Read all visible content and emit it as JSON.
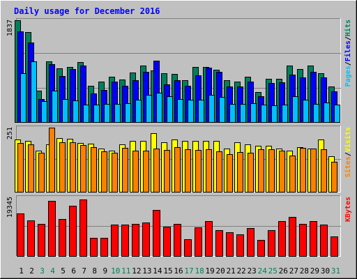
{
  "title": "Daily usage for December 2016",
  "colors": {
    "background": "#c0c0c0",
    "title": "#0000ff",
    "hits": "#00805c",
    "files": "#0000ff",
    "pages": "#00c0ff",
    "visits": "#ffff00",
    "sites": "#ff8000",
    "kbytes": "#ff0000",
    "weekend_label": "#00805c",
    "weekday_label": "#000000"
  },
  "chart_data": [
    {
      "type": "bar",
      "panel": "top",
      "ymax": 1837,
      "ymax_label": "1837",
      "legend": [
        {
          "text": "Pages",
          "color": "#00c0ff"
        },
        {
          "text": "/",
          "color": "#000000"
        },
        {
          "text": "Files",
          "color": "#0000ff"
        },
        {
          "text": "/",
          "color": "#000000"
        },
        {
          "text": "Hits",
          "color": "#00805c"
        }
      ],
      "categories": [
        "1",
        "2",
        "3",
        "4",
        "5",
        "6",
        "7",
        "8",
        "9",
        "10",
        "11",
        "12",
        "13",
        "14",
        "15",
        "16",
        "17",
        "18",
        "19",
        "20",
        "21",
        "22",
        "23",
        "24",
        "25",
        "26",
        "27",
        "28",
        "29",
        "30",
        "31"
      ],
      "series": [
        {
          "name": "Hits",
          "color": "#00805c",
          "values": [
            1837,
            1620,
            560,
            1100,
            970,
            1000,
            1080,
            660,
            730,
            820,
            770,
            890,
            1020,
            930,
            875,
            870,
            750,
            1000,
            1000,
            940,
            750,
            730,
            820,
            540,
            780,
            780,
            1020,
            960,
            1020,
            880,
            640
          ]
        },
        {
          "name": "Files",
          "color": "#0000ff",
          "values": [
            1640,
            1440,
            420,
            1040,
            830,
            960,
            1020,
            520,
            580,
            730,
            660,
            760,
            900,
            1110,
            680,
            760,
            650,
            840,
            980,
            910,
            640,
            640,
            730,
            460,
            700,
            720,
            850,
            800,
            910,
            810,
            550
          ]
        },
        {
          "name": "Pages",
          "color": "#00c0ff",
          "values": [
            880,
            1090,
            380,
            570,
            410,
            390,
            320,
            320,
            330,
            330,
            340,
            400,
            490,
            530,
            460,
            420,
            400,
            400,
            490,
            450,
            330,
            330,
            340,
            310,
            300,
            310,
            460,
            400,
            330,
            350,
            310
          ]
        }
      ]
    },
    {
      "type": "bar",
      "panel": "middle",
      "ymax": 251,
      "ymax_label": "251",
      "legend": [
        {
          "text": "Sites",
          "color": "#ff8000"
        },
        {
          "text": "/",
          "color": "#000000"
        },
        {
          "text": "Visits",
          "color": "#ffff00"
        }
      ],
      "categories": [
        "1",
        "2",
        "3",
        "4",
        "5",
        "6",
        "7",
        "8",
        "9",
        "10",
        "11",
        "12",
        "13",
        "14",
        "15",
        "16",
        "17",
        "18",
        "19",
        "20",
        "21",
        "22",
        "23",
        "24",
        "25",
        "26",
        "27",
        "28",
        "29",
        "30",
        "31"
      ],
      "series": [
        {
          "name": "Visits",
          "color": "#ffff00",
          "values": [
            205,
            200,
            160,
            185,
            210,
            208,
            190,
            188,
            170,
            160,
            185,
            200,
            200,
            230,
            195,
            205,
            200,
            200,
            200,
            200,
            170,
            195,
            185,
            180,
            180,
            170,
            162,
            175,
            170,
            205,
            140
          ]
        },
        {
          "name": "Sites",
          "color": "#ff8000",
          "values": [
            190,
            185,
            152,
            251,
            194,
            194,
            182,
            174,
            158,
            152,
            172,
            162,
            161,
            168,
            163,
            174,
            166,
            163,
            166,
            159,
            146,
            156,
            154,
            167,
            167,
            161,
            143,
            172,
            168,
            167,
            116
          ]
        }
      ]
    },
    {
      "type": "bar",
      "panel": "bottom",
      "ymax": 19345,
      "ymax_label": "19345",
      "legend": [
        {
          "text": "KBytes",
          "color": "#ff0000"
        }
      ],
      "categories": [
        "1",
        "2",
        "3",
        "4",
        "5",
        "6",
        "7",
        "8",
        "9",
        "10",
        "11",
        "12",
        "13",
        "14",
        "15",
        "16",
        "17",
        "18",
        "19",
        "20",
        "21",
        "22",
        "23",
        "24",
        "25",
        "26",
        "27",
        "28",
        "29",
        "30",
        "31"
      ],
      "series": [
        {
          "name": "KBytes",
          "color": "#ff0000",
          "values": [
            14000,
            11800,
            10600,
            18300,
            12100,
            16500,
            18700,
            5900,
            6000,
            10300,
            10300,
            10700,
            11000,
            15300,
            9600,
            10500,
            5600,
            9500,
            11500,
            8500,
            7800,
            7100,
            9300,
            5400,
            8500,
            11500,
            12800,
            10700,
            11500,
            10400,
            6400
          ]
        }
      ]
    }
  ],
  "x_labels": [
    {
      "text": "1",
      "weekend": false
    },
    {
      "text": "2",
      "weekend": false
    },
    {
      "text": "3",
      "weekend": true
    },
    {
      "text": "4",
      "weekend": true
    },
    {
      "text": "5",
      "weekend": false
    },
    {
      "text": "6",
      "weekend": false
    },
    {
      "text": "7",
      "weekend": false
    },
    {
      "text": "8",
      "weekend": false
    },
    {
      "text": "9",
      "weekend": false
    },
    {
      "text": "10",
      "weekend": true
    },
    {
      "text": "11",
      "weekend": true
    },
    {
      "text": "12",
      "weekend": false
    },
    {
      "text": "13",
      "weekend": false
    },
    {
      "text": "14",
      "weekend": false
    },
    {
      "text": "15",
      "weekend": false
    },
    {
      "text": "16",
      "weekend": false
    },
    {
      "text": "17",
      "weekend": true
    },
    {
      "text": "18",
      "weekend": true
    },
    {
      "text": "19",
      "weekend": false
    },
    {
      "text": "20",
      "weekend": false
    },
    {
      "text": "21",
      "weekend": false
    },
    {
      "text": "22",
      "weekend": false
    },
    {
      "text": "23",
      "weekend": false
    },
    {
      "text": "24",
      "weekend": true
    },
    {
      "text": "25",
      "weekend": true
    },
    {
      "text": "26",
      "weekend": false
    },
    {
      "text": "27",
      "weekend": false
    },
    {
      "text": "28",
      "weekend": false
    },
    {
      "text": "29",
      "weekend": false
    },
    {
      "text": "30",
      "weekend": false
    },
    {
      "text": "31",
      "weekend": true
    }
  ]
}
